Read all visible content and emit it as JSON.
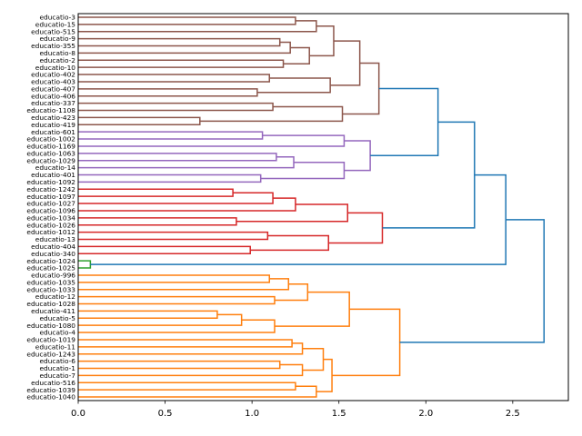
{
  "chart_data": {
    "type": "dendrogram",
    "orientation": "left",
    "title": "",
    "xlabel": "",
    "ylabel": "",
    "xlim": [
      0,
      2.82
    ],
    "xticks": [
      0.0,
      0.5,
      1.0,
      1.5,
      2.0,
      2.5
    ],
    "xtick_labels": [
      "0.0",
      "0.5",
      "1.0",
      "1.5",
      "2.0",
      "2.5"
    ],
    "colors": {
      "above_threshold": "#1f77b4",
      "cluster1": "#8c564b",
      "cluster2": "#9467bd",
      "cluster3": "#d62728",
      "cluster4": "#2ca02c",
      "cluster5": "#ff7f0e"
    },
    "leaves": [
      "educatio-3",
      "educatio-15",
      "educatio-515",
      "educatio-9",
      "educatio-355",
      "educatio-8",
      "educatio-2",
      "educatio-10",
      "educatio-402",
      "educatio-403",
      "educatio-407",
      "educatio-406",
      "educatio-337",
      "educatio-1108",
      "educatio-423",
      "educatio-419",
      "educatio-601",
      "educatio-1002",
      "educatio-1169",
      "educatio-1063",
      "educatio-1029",
      "educatio-14",
      "educatio-401",
      "educatio-1092",
      "educatio-1242",
      "educatio-1097",
      "educatio-1027",
      "educatio-1096",
      "educatio-1034",
      "educatio-1026",
      "educatio-1012",
      "educatio-13",
      "educatio-404",
      "educatio-340",
      "educatio-1024",
      "educatio-1025",
      "educatio-996",
      "educatio-1035",
      "educatio-1033",
      "educatio-12",
      "educatio-1028",
      "educatio-411",
      "educatio-5",
      "educatio-1080",
      "educatio-4",
      "educatio-1019",
      "educatio-11",
      "educatio-1243",
      "educatio-6",
      "educatio-1",
      "educatio-7",
      "educatio-516",
      "educatio-1039",
      "educatio-1040"
    ],
    "tree": {
      "h": 2.68,
      "color": "above_threshold",
      "c": [
        {
          "h": 2.46,
          "c": [
            {
              "h": 2.28,
              "c": [
                {
                  "h": 2.07,
                  "c": [
                    {
                      "h": 1.73,
                      "color": "cluster1",
                      "c": [
                        {
                          "h": 1.62,
                          "c": [
                            {
                              "h": 1.47,
                              "c": [
                                {
                                  "h": 1.37,
                                  "c": [
                                    {
                                      "h": 1.25,
                                      "c": [
                                        0,
                                        1
                                      ]
                                    },
                                    2
                                  ]
                                },
                                {
                                  "h": 1.33,
                                  "c": [
                                    {
                                      "h": 1.22,
                                      "c": [
                                        {
                                          "h": 1.16,
                                          "c": [
                                            3,
                                            4
                                          ]
                                        },
                                        5
                                      ]
                                    },
                                    {
                                      "h": 1.18,
                                      "c": [
                                        6,
                                        7
                                      ]
                                    }
                                  ]
                                }
                              ]
                            },
                            {
                              "h": 1.45,
                              "c": [
                                {
                                  "h": 1.1,
                                  "c": [
                                    8,
                                    9
                                  ]
                                },
                                {
                                  "h": 1.03,
                                  "c": [
                                    10,
                                    11
                                  ]
                                }
                              ]
                            }
                          ]
                        },
                        {
                          "h": 1.52,
                          "c": [
                            {
                              "h": 1.12,
                              "c": [
                                12,
                                13
                              ]
                            },
                            {
                              "h": 0.7,
                              "c": [
                                14,
                                15
                              ]
                            }
                          ]
                        }
                      ]
                    },
                    {
                      "h": 1.68,
                      "color": "cluster2",
                      "c": [
                        {
                          "h": 1.53,
                          "c": [
                            {
                              "h": 1.06,
                              "c": [
                                16,
                                17
                              ]
                            },
                            18
                          ]
                        },
                        {
                          "h": 1.53,
                          "c": [
                            {
                              "h": 1.24,
                              "c": [
                                {
                                  "h": 1.14,
                                  "c": [
                                    19,
                                    20
                                  ]
                                },
                                21
                              ]
                            },
                            {
                              "h": 1.05,
                              "c": [
                                22,
                                23
                              ]
                            }
                          ]
                        }
                      ]
                    }
                  ]
                },
                {
                  "h": 1.75,
                  "color": "cluster3",
                  "c": [
                    {
                      "h": 1.55,
                      "c": [
                        {
                          "h": 1.25,
                          "c": [
                            {
                              "h": 1.12,
                              "c": [
                                {
                                  "h": 0.89,
                                  "c": [
                                    24,
                                    25
                                  ]
                                },
                                26
                              ]
                            },
                            27
                          ]
                        },
                        {
                          "h": 0.91,
                          "c": [
                            28,
                            29
                          ]
                        }
                      ]
                    },
                    {
                      "h": 1.44,
                      "c": [
                        {
                          "h": 1.09,
                          "c": [
                            30,
                            31
                          ]
                        },
                        {
                          "h": 0.99,
                          "c": [
                            32,
                            33
                          ]
                        }
                      ]
                    }
                  ]
                }
              ]
            },
            {
              "h": 0.07,
              "color": "cluster4",
              "c": [
                34,
                35
              ]
            }
          ]
        },
        {
          "h": 1.85,
          "color": "cluster5",
          "c": [
            {
              "h": 1.56,
              "c": [
                {
                  "h": 1.32,
                  "c": [
                    {
                      "h": 1.21,
                      "c": [
                        {
                          "h": 1.1,
                          "c": [
                            36,
                            37
                          ]
                        },
                        38
                      ]
                    },
                    {
                      "h": 1.13,
                      "c": [
                        39,
                        40
                      ]
                    }
                  ]
                },
                {
                  "h": 1.13,
                  "c": [
                    {
                      "h": 0.94,
                      "c": [
                        {
                          "h": 0.8,
                          "c": [
                            41,
                            42
                          ]
                        },
                        43
                      ]
                    },
                    44
                  ]
                }
              ]
            },
            {
              "h": 1.46,
              "c": [
                {
                  "h": 1.41,
                  "c": [
                    {
                      "h": 1.29,
                      "c": [
                        {
                          "h": 1.23,
                          "c": [
                            45,
                            46
                          ]
                        },
                        47
                      ]
                    },
                    {
                      "h": 1.29,
                      "c": [
                        {
                          "h": 1.16,
                          "c": [
                            48,
                            49
                          ]
                        },
                        50
                      ]
                    }
                  ]
                },
                {
                  "h": 1.37,
                  "c": [
                    {
                      "h": 1.25,
                      "c": [
                        51,
                        52
                      ]
                    },
                    53
                  ]
                }
              ]
            }
          ]
        }
      ]
    }
  }
}
